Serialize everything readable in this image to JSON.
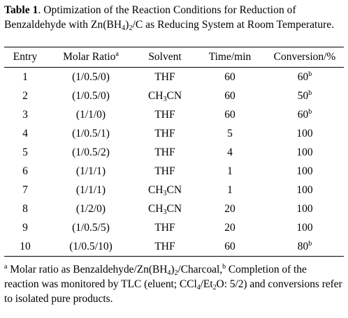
{
  "caption": {
    "label": "Table 1",
    "t1": ". Optimization of the Reaction Conditions for Reduction of Benzaldehyde with Zn(BH",
    "sub1": "4",
    "t2": ")",
    "sub2": "2",
    "t3": "/C as Reducing System at Room Temperature."
  },
  "columns": {
    "entry": "Entry",
    "ratio": "Molar Ratio",
    "ratio_sup": "a",
    "solvent": "Solvent",
    "time": "Time/min",
    "conversion": "Conversion/%"
  },
  "rows": [
    {
      "entry": "1",
      "ratio": "(1/0.5/0)",
      "solvent_main": "THF",
      "solvent_sub": "",
      "solvent_tail": "",
      "time": "60",
      "conv": "60",
      "conv_sup": "b"
    },
    {
      "entry": "2",
      "ratio": "(1/0.5/0)",
      "solvent_main": "CH",
      "solvent_sub": "3",
      "solvent_tail": "CN",
      "time": "60",
      "conv": "50",
      "conv_sup": "b"
    },
    {
      "entry": "3",
      "ratio": "(1/1/0)",
      "solvent_main": "THF",
      "solvent_sub": "",
      "solvent_tail": "",
      "time": "60",
      "conv": "60",
      "conv_sup": "b"
    },
    {
      "entry": "4",
      "ratio": "(1/0.5/1)",
      "solvent_main": "THF",
      "solvent_sub": "",
      "solvent_tail": "",
      "time": "5",
      "conv": "100",
      "conv_sup": ""
    },
    {
      "entry": "5",
      "ratio": "(1/0.5/2)",
      "solvent_main": "THF",
      "solvent_sub": "",
      "solvent_tail": "",
      "time": "4",
      "conv": "100",
      "conv_sup": ""
    },
    {
      "entry": "6",
      "ratio": "(1/1/1)",
      "solvent_main": "THF",
      "solvent_sub": "",
      "solvent_tail": "",
      "time": "1",
      "conv": "100",
      "conv_sup": ""
    },
    {
      "entry": "7",
      "ratio": "(1/1/1)",
      "solvent_main": "CH",
      "solvent_sub": "3",
      "solvent_tail": "CN",
      "time": "1",
      "conv": "100",
      "conv_sup": ""
    },
    {
      "entry": "8",
      "ratio": "(1/2/0)",
      "solvent_main": "CH",
      "solvent_sub": "3",
      "solvent_tail": "CN",
      "time": "20",
      "conv": "100",
      "conv_sup": ""
    },
    {
      "entry": "9",
      "ratio": "(1/0.5/5)",
      "solvent_main": "THF",
      "solvent_sub": "",
      "solvent_tail": "",
      "time": "20",
      "conv": "100",
      "conv_sup": ""
    },
    {
      "entry": "10",
      "ratio": "(1/0.5/10)",
      "solvent_main": "THF",
      "solvent_sub": "",
      "solvent_tail": "",
      "time": "60",
      "conv": "80",
      "conv_sup": "b"
    }
  ],
  "footnote": {
    "sup_a": "a",
    "a1": " Molar ratio as Benzaldehyde/Zn(BH",
    "a_sub1": "4",
    "a2": ")",
    "a_sub2": "2",
    "a3": "/Charcoal,",
    "sup_b": "b",
    "b1": " Completion of the reaction was monitored by TLC (eluent; CCl",
    "b_sub1": "4",
    "b2": "/Et",
    "b_sub2": "2",
    "b3": "O: 5/2) and conversions refer to isolated pure products."
  }
}
